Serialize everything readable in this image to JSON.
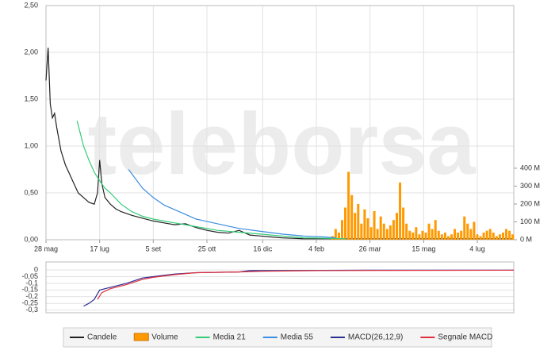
{
  "chart_data": [
    {
      "type": "line",
      "watermark": "teleborsa",
      "xlim": [
        0,
        436
      ],
      "xticks": [
        {
          "value": 0,
          "label": "28 mag"
        },
        {
          "value": 50,
          "label": "17 lug"
        },
        {
          "value": 100,
          "label": "5 set"
        },
        {
          "value": 150,
          "label": "25 ott"
        },
        {
          "value": 202,
          "label": "16 dic"
        },
        {
          "value": 252,
          "label": "4 feb"
        },
        {
          "value": 302,
          "label": "26 mar"
        },
        {
          "value": 352,
          "label": "15 mag"
        },
        {
          "value": 402,
          "label": "4 lug"
        }
      ],
      "ylim": [
        0,
        2.5
      ],
      "yticks": [
        {
          "value": 0,
          "label": "0,00"
        },
        {
          "value": 0.5,
          "label": "0,50"
        },
        {
          "value": 1,
          "label": "1,00"
        },
        {
          "value": 1.5,
          "label": "1,50"
        },
        {
          "value": 2,
          "label": "2,00"
        },
        {
          "value": 2.5,
          "label": "2,50"
        }
      ],
      "y2lim": [
        0,
        1310
      ],
      "y2ticks": [
        {
          "value": 0,
          "label": "0 M"
        },
        {
          "value": 100,
          "label": "100 M"
        },
        {
          "value": 200,
          "label": "200 M"
        },
        {
          "value": 300,
          "label": "300 M"
        },
        {
          "value": 400,
          "label": "400 M"
        }
      ],
      "grid": true,
      "series": [
        {
          "name": "Candele",
          "type": "line",
          "color": "#222222",
          "x": [
            0,
            2,
            4,
            6,
            8,
            10,
            14,
            18,
            22,
            26,
            30,
            35,
            40,
            45,
            48,
            50,
            52,
            55,
            60,
            65,
            70,
            80,
            90,
            100,
            110,
            120,
            130,
            140,
            150,
            160,
            170,
            180,
            190,
            200,
            210,
            220,
            230,
            240,
            250,
            260,
            280,
            300,
            330,
            360,
            390,
            420,
            436
          ],
          "values": [
            1.7,
            2.05,
            1.45,
            1.3,
            1.35,
            1.2,
            0.95,
            0.8,
            0.7,
            0.6,
            0.5,
            0.45,
            0.4,
            0.38,
            0.5,
            0.85,
            0.6,
            0.45,
            0.38,
            0.33,
            0.3,
            0.26,
            0.23,
            0.2,
            0.18,
            0.16,
            0.17,
            0.13,
            0.1,
            0.08,
            0.07,
            0.1,
            0.05,
            0.04,
            0.03,
            0.02,
            0.015,
            0.01,
            0.01,
            0.01,
            0.01,
            0.01,
            0.01,
            0.01,
            0.01,
            0.01,
            0.01
          ]
        },
        {
          "name": "Volume",
          "type": "bar",
          "axis": "y2",
          "color": "#ff9900",
          "x": [
            267,
            270,
            273,
            276,
            279,
            282,
            285,
            288,
            291,
            294,
            297,
            300,
            303,
            306,
            309,
            312,
            315,
            318,
            321,
            324,
            327,
            330,
            333,
            336,
            339,
            342,
            345,
            348,
            351,
            354,
            357,
            360,
            363,
            366,
            369,
            372,
            375,
            378,
            381,
            384,
            387,
            390,
            393,
            396,
            399,
            402,
            405,
            408,
            411,
            414,
            417,
            420,
            423,
            426,
            429,
            432,
            435
          ],
          "values": [
            20,
            60,
            40,
            110,
            180,
            380,
            250,
            150,
            200,
            90,
            170,
            120,
            70,
            160,
            60,
            130,
            90,
            60,
            80,
            110,
            150,
            320,
            180,
            90,
            50,
            40,
            70,
            30,
            50,
            40,
            90,
            60,
            110,
            50,
            30,
            40,
            20,
            30,
            60,
            40,
            50,
            130,
            90,
            60,
            100,
            30,
            20,
            40,
            50,
            60,
            40,
            20,
            30,
            40,
            60,
            50,
            30
          ]
        },
        {
          "name": "Media 21",
          "type": "line",
          "color": "#33cc77",
          "x": [
            29,
            35,
            40,
            45,
            50,
            55,
            60,
            70,
            80,
            90,
            100,
            120,
            140,
            160,
            180,
            200,
            220,
            240,
            260,
            280
          ],
          "values": [
            1.27,
            1.0,
            0.85,
            0.72,
            0.63,
            0.55,
            0.5,
            0.38,
            0.3,
            0.25,
            0.22,
            0.18,
            0.14,
            0.1,
            0.08,
            0.06,
            0.04,
            0.02,
            0.015,
            0.01
          ]
        },
        {
          "name": "Media 55",
          "type": "line",
          "color": "#3a8de0",
          "x": [
            77,
            90,
            100,
            110,
            120,
            130,
            140,
            160,
            180,
            200,
            220,
            240,
            260,
            270
          ],
          "values": [
            0.75,
            0.55,
            0.45,
            0.37,
            0.32,
            0.27,
            0.22,
            0.17,
            0.12,
            0.09,
            0.06,
            0.04,
            0.03,
            0.02
          ]
        }
      ]
    },
    {
      "type": "line",
      "xlim": [
        0,
        436
      ],
      "ylim": [
        -0.32,
        0.06
      ],
      "yticks": [
        0,
        {
          "value": -0.05,
          "label": "-0,05"
        },
        {
          "value": -0.1,
          "label": "-0,1"
        },
        {
          "value": -0.15,
          "label": "-0,15"
        },
        {
          "value": -0.2,
          "label": "-0,2"
        },
        {
          "value": -0.25,
          "label": "-0,25"
        },
        {
          "value": -0.3,
          "label": "-0,3"
        }
      ],
      "grid": true,
      "series": [
        {
          "name": "MACD(26,12,9)",
          "type": "line",
          "color": "#2b2f8f",
          "x": [
            35,
            40,
            45,
            50,
            55,
            65,
            75,
            90,
            100,
            120,
            140,
            180,
            190,
            220,
            260,
            300,
            436
          ],
          "values": [
            -0.27,
            -0.25,
            -0.22,
            -0.15,
            -0.14,
            -0.12,
            -0.1,
            -0.06,
            -0.05,
            -0.03,
            -0.02,
            -0.015,
            -0.005,
            -0.005,
            -0.003,
            -0.002,
            -0.001
          ]
        },
        {
          "name": "Segnale MACD",
          "type": "line",
          "color": "#e03040",
          "x": [
            48,
            52,
            60,
            75,
            90,
            100,
            120,
            140,
            180,
            200,
            260,
            436
          ],
          "values": [
            -0.22,
            -0.17,
            -0.14,
            -0.11,
            -0.07,
            -0.055,
            -0.035,
            -0.02,
            -0.015,
            -0.01,
            -0.004,
            -0.002
          ]
        }
      ]
    }
  ]
}
